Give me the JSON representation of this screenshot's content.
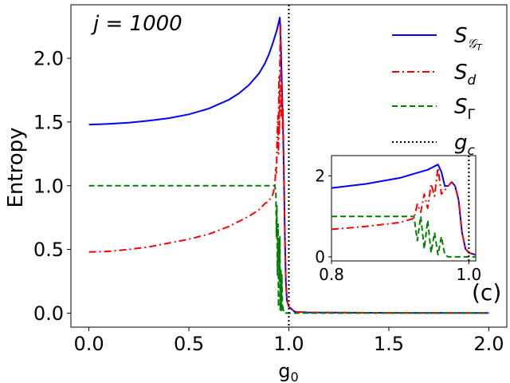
{
  "chart_data": [
    {
      "id": "main",
      "type": "line",
      "annotation": "j = 1000",
      "panel_label": "(c)",
      "xlabel": "g_0",
      "ylabel": "Entropy",
      "xlim": [
        -0.09,
        2.09
      ],
      "ylim": [
        -0.11,
        2.42
      ],
      "xticks": [
        0.0,
        0.5,
        1.0,
        1.5,
        2.0
      ],
      "xtick_labels": [
        "0.0",
        "0.5",
        "1.0",
        "1.5",
        "2.0"
      ],
      "yticks": [
        0.0,
        0.5,
        1.0,
        1.5,
        2.0
      ],
      "ytick_labels": [
        "0.0",
        "0.5",
        "1.0",
        "1.5",
        "2.0"
      ],
      "vline": {
        "x": 1.0,
        "label": "g_c",
        "color": "#000000",
        "style": "dotted"
      },
      "legend": {
        "location": "upper-right",
        "entries": [
          {
            "label": "S_{G_T}",
            "color": "#0000ff",
            "style": "solid"
          },
          {
            "label": "S_d",
            "color": "#ff0000",
            "style": "dashdot"
          },
          {
            "label": "S_Γ",
            "color": "#008000",
            "style": "dashed"
          },
          {
            "label": "g_c",
            "color": "#000000",
            "style": "dotted"
          }
        ]
      },
      "series": [
        {
          "name": "S_GT",
          "color": "#0000ff",
          "style": "solid",
          "points": [
            [
              0,
              1.48
            ],
            [
              0.1,
              1.485
            ],
            [
              0.2,
              1.495
            ],
            [
              0.3,
              1.51
            ],
            [
              0.4,
              1.53
            ],
            [
              0.5,
              1.56
            ],
            [
              0.6,
              1.605
            ],
            [
              0.7,
              1.675
            ],
            [
              0.75,
              1.725
            ],
            [
              0.8,
              1.79
            ],
            [
              0.85,
              1.88
            ],
            [
              0.88,
              1.96
            ],
            [
              0.9,
              2.03
            ],
            [
              0.92,
              2.12
            ],
            [
              0.94,
              2.22
            ],
            [
              0.955,
              2.32
            ],
            [
              0.96,
              2.1
            ],
            [
              0.965,
              1.8
            ],
            [
              0.97,
              1.5
            ],
            [
              0.975,
              1.1
            ],
            [
              0.98,
              0.6
            ],
            [
              0.985,
              0.25
            ],
            [
              0.99,
              0.1
            ],
            [
              1.0,
              0.05
            ],
            [
              1.03,
              0.01
            ],
            [
              1.1,
              0.005
            ],
            [
              1.5,
              0.002
            ],
            [
              2.0,
              0.001
            ]
          ]
        },
        {
          "name": "S_d",
          "color": "#ff0000",
          "style": "dashdot",
          "points": [
            [
              0,
              0.48
            ],
            [
              0.1,
              0.485
            ],
            [
              0.2,
              0.5
            ],
            [
              0.3,
              0.52
            ],
            [
              0.4,
              0.55
            ],
            [
              0.5,
              0.58
            ],
            [
              0.6,
              0.62
            ],
            [
              0.7,
              0.68
            ],
            [
              0.8,
              0.76
            ],
            [
              0.85,
              0.81
            ],
            [
              0.88,
              0.86
            ],
            [
              0.9,
              0.88
            ],
            [
              0.92,
              0.93
            ],
            [
              0.93,
              1.0
            ],
            [
              0.935,
              1.15
            ],
            [
              0.938,
              1.1
            ],
            [
              0.942,
              1.4
            ],
            [
              0.945,
              1.55
            ],
            [
              0.948,
              1.25
            ],
            [
              0.95,
              1.85
            ],
            [
              0.952,
              1.4
            ],
            [
              0.955,
              1.95
            ],
            [
              0.958,
              2.28
            ],
            [
              0.96,
              1.6
            ],
            [
              0.962,
              1.55
            ],
            [
              0.965,
              1.8
            ],
            [
              0.968,
              1.45
            ],
            [
              0.97,
              1.6
            ],
            [
              0.975,
              1.2
            ],
            [
              0.98,
              0.6
            ],
            [
              0.985,
              0.25
            ],
            [
              0.99,
              0.1
            ],
            [
              1.0,
              0.05
            ],
            [
              1.03,
              0.01
            ],
            [
              1.1,
              0.005
            ],
            [
              1.5,
              0.002
            ],
            [
              2.0,
              0.001
            ]
          ]
        },
        {
          "name": "S_Gamma",
          "color": "#008000",
          "style": "dashed",
          "points": [
            [
              0,
              1.0
            ],
            [
              0.9,
              1.0
            ],
            [
              0.93,
              1.0
            ],
            [
              0.935,
              0.95
            ],
            [
              0.938,
              0.6
            ],
            [
              0.94,
              0.85
            ],
            [
              0.943,
              0.3
            ],
            [
              0.946,
              0.7
            ],
            [
              0.948,
              0.05
            ],
            [
              0.95,
              0.55
            ],
            [
              0.953,
              0.25
            ],
            [
              0.955,
              0.6
            ],
            [
              0.957,
              0.02
            ],
            [
              0.96,
              0.35
            ],
            [
              0.962,
              0.02
            ],
            [
              0.965,
              0.3
            ],
            [
              0.968,
              0.02
            ],
            [
              0.97,
              0.05
            ],
            [
              0.975,
              0.0
            ],
            [
              1.0,
              0.0
            ],
            [
              2.0,
              0.0
            ]
          ]
        }
      ]
    },
    {
      "id": "inset",
      "type": "line",
      "xlim": [
        0.8,
        1.01
      ],
      "ylim": [
        -0.1,
        2.5
      ],
      "xticks": [
        0.8,
        1.0
      ],
      "xtick_labels": [
        "0.8",
        "1.0"
      ],
      "yticks": [
        0,
        2
      ],
      "ytick_labels": [
        "0",
        "2"
      ],
      "vline": {
        "x": 1.0,
        "color": "#000000",
        "style": "dotted"
      },
      "series": [
        {
          "name": "S_GT",
          "color": "#0000ff",
          "style": "solid",
          "points": [
            [
              0.8,
              1.7
            ],
            [
              0.85,
              1.8
            ],
            [
              0.9,
              1.95
            ],
            [
              0.92,
              2.05
            ],
            [
              0.94,
              2.15
            ],
            [
              0.955,
              2.28
            ],
            [
              0.96,
              2.1
            ],
            [
              0.965,
              1.75
            ],
            [
              0.97,
              1.75
            ],
            [
              0.975,
              1.85
            ],
            [
              0.98,
              1.75
            ],
            [
              0.985,
              1.4
            ],
            [
              0.99,
              0.6
            ],
            [
              0.995,
              0.2
            ],
            [
              1.0,
              0.1
            ],
            [
              1.01,
              0.05
            ]
          ]
        },
        {
          "name": "S_d",
          "color": "#ff0000",
          "style": "dashdot",
          "points": [
            [
              0.8,
              0.68
            ],
            [
              0.85,
              0.75
            ],
            [
              0.9,
              0.85
            ],
            [
              0.92,
              0.95
            ],
            [
              0.925,
              1.3
            ],
            [
              0.93,
              1.1
            ],
            [
              0.935,
              1.55
            ],
            [
              0.94,
              1.2
            ],
            [
              0.945,
              1.8
            ],
            [
              0.95,
              1.5
            ],
            [
              0.955,
              2.2
            ],
            [
              0.96,
              1.55
            ],
            [
              0.965,
              1.65
            ],
            [
              0.97,
              1.75
            ],
            [
              0.975,
              1.85
            ],
            [
              0.98,
              1.75
            ],
            [
              0.985,
              1.4
            ],
            [
              0.99,
              0.6
            ],
            [
              0.995,
              0.2
            ],
            [
              1.0,
              0.1
            ],
            [
              1.01,
              0.05
            ]
          ]
        },
        {
          "name": "S_Gamma",
          "color": "#008000",
          "style": "dashed",
          "points": [
            [
              0.8,
              1.0
            ],
            [
              0.92,
              1.0
            ],
            [
              0.925,
              0.4
            ],
            [
              0.93,
              1.0
            ],
            [
              0.935,
              0.2
            ],
            [
              0.94,
              0.9
            ],
            [
              0.945,
              0.1
            ],
            [
              0.95,
              0.6
            ],
            [
              0.955,
              0.05
            ],
            [
              0.96,
              0.5
            ],
            [
              0.965,
              0.05
            ],
            [
              0.97,
              0.0
            ],
            [
              1.0,
              0.0
            ],
            [
              1.01,
              0.0
            ]
          ]
        }
      ]
    }
  ]
}
